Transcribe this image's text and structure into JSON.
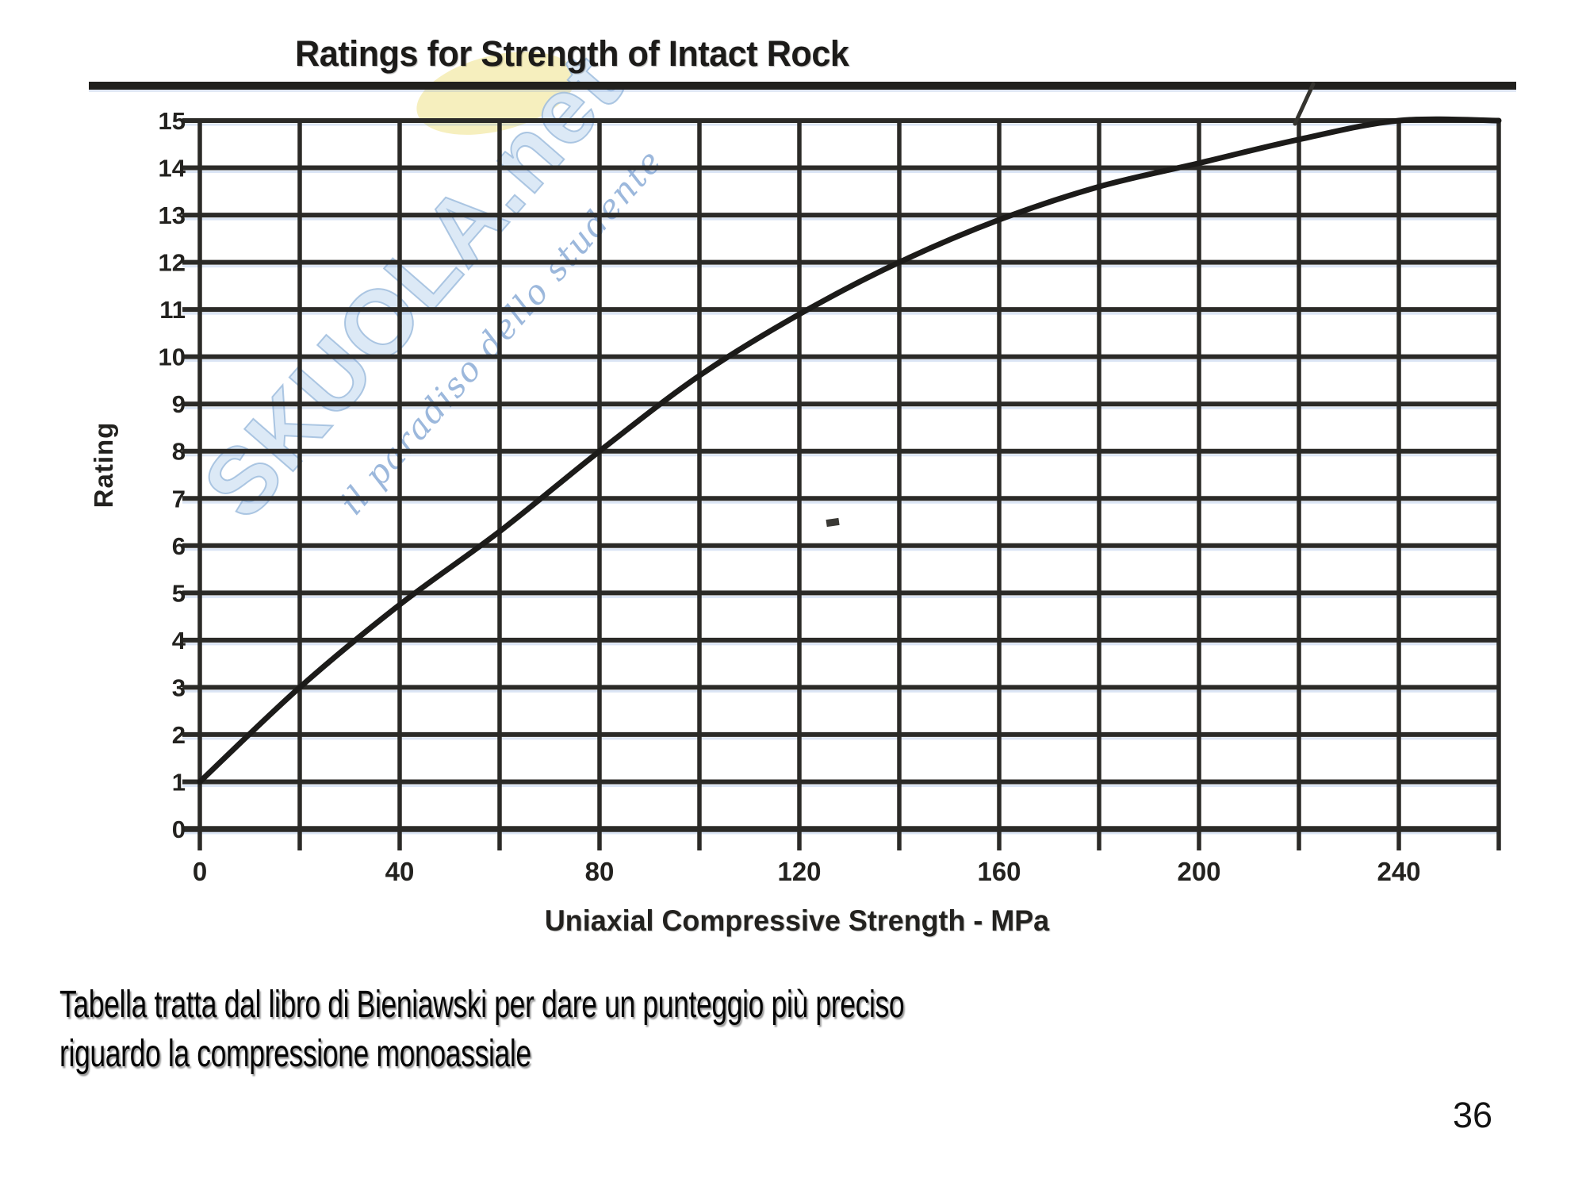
{
  "page": {
    "caption_line1": "Tabella tratta dal libro di Bieniawski per dare un punteggio più preciso",
    "caption_line2": "riguardo la compressione monoassiale",
    "page_number": "36"
  },
  "watermark": {
    "brand": "SKUOLA.net",
    "tagline": "il paradiso dello studente",
    "brand_color": "#c6dbf0",
    "tagline_color": "#769dce",
    "highlight_color": "#f5eeb9"
  },
  "chart_data": {
    "type": "line",
    "title": "Ratings for Strength of Intact Rock",
    "xlabel": "Uniaxial Compressive Strength - MPa",
    "ylabel": "Rating",
    "xlim": [
      0,
      260
    ],
    "ylim": [
      0,
      15
    ],
    "grid": true,
    "legend": false,
    "x_gridline_step": 20,
    "y_gridline_step": 1,
    "x_tick_values": [
      0,
      40,
      80,
      120,
      160,
      200,
      240
    ],
    "x_tick_labels": [
      "0",
      "40",
      "80",
      "120",
      "160",
      "200",
      "240"
    ],
    "y_tick_values": [
      0,
      1,
      2,
      3,
      4,
      5,
      6,
      7,
      8,
      9,
      10,
      11,
      12,
      13,
      14,
      15
    ],
    "ink_color": "#2b2a27",
    "curve_color": "#1c1b19",
    "series": [
      {
        "name": "Rating vs Uniaxial Compressive Strength",
        "points": [
          [
            0,
            1.0
          ],
          [
            20,
            3.0
          ],
          [
            40,
            4.75
          ],
          [
            60,
            6.3
          ],
          [
            80,
            8.0
          ],
          [
            100,
            9.6
          ],
          [
            120,
            10.9
          ],
          [
            140,
            12.0
          ],
          [
            160,
            12.9
          ],
          [
            180,
            13.6
          ],
          [
            200,
            14.1
          ],
          [
            220,
            14.6
          ],
          [
            240,
            15.0
          ],
          [
            260,
            15.0
          ]
        ]
      }
    ]
  }
}
